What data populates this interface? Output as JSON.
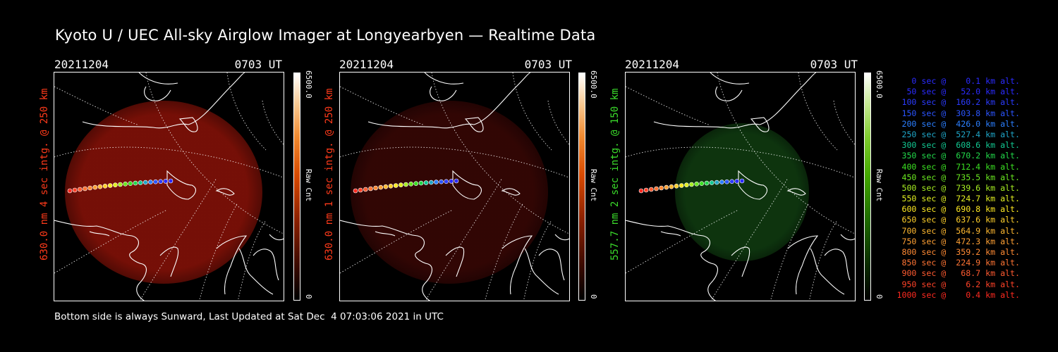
{
  "title": "Kyoto U / UEC All-sky Airglow Imager at Longyearbyen — Realtime Data",
  "panels": [
    {
      "date": "20211204",
      "time": "0703 UT",
      "ylabel": "630.0 nm 4 sec intg. @ 250 km",
      "ylabel_color": "#ff3a1a",
      "colorbar_max": "6500.0",
      "colorbar_min": "0",
      "colorbar_unit": "Raw Cnt",
      "image_color": "#8a1208",
      "image_alpha": 0.85
    },
    {
      "date": "20211204",
      "time": "0703 UT",
      "ylabel": "630.0 nm 1 sec intg. @ 250 km",
      "ylabel_color": "#ff3a1a",
      "colorbar_max": "6500.0",
      "colorbar_min": "0",
      "colorbar_unit": "Raw Cnt",
      "image_color": "#3a0705",
      "image_alpha": 0.85
    },
    {
      "date": "20211204",
      "time": "0703 UT",
      "ylabel": "557.7 nm 2 sec intg. @ 150 km",
      "ylabel_color": "#3bdc2b",
      "colorbar_max": "6500.0",
      "colorbar_min": "0",
      "colorbar_unit": "Raw Cnt",
      "image_color": "#0f3a10",
      "image_alpha": 0.9
    }
  ],
  "legend": [
    {
      "text": "   0 sec @    0.1 km alt.",
      "color": "#2b2bff"
    },
    {
      "text": "  50 sec @   52.0 km alt.",
      "color": "#2b2bff"
    },
    {
      "text": " 100 sec @  160.2 km alt.",
      "color": "#2b3bff"
    },
    {
      "text": " 150 sec @  303.8 km alt.",
      "color": "#2b55ff"
    },
    {
      "text": " 200 sec @  426.0 km alt.",
      "color": "#2b7fff"
    },
    {
      "text": " 250 sec @  527.4 km alt.",
      "color": "#1fa6c8"
    },
    {
      "text": " 300 sec @  608.6 km alt.",
      "color": "#12c892"
    },
    {
      "text": " 350 sec @  670.2 km alt.",
      "color": "#22d84a"
    },
    {
      "text": " 400 sec @  712.4 km alt.",
      "color": "#3be022"
    },
    {
      "text": " 450 sec @  735.5 km alt.",
      "color": "#6ae820"
    },
    {
      "text": " 500 sec @  739.6 km alt.",
      "color": "#a6ee22"
    },
    {
      "text": " 550 sec @  724.7 km alt.",
      "color": "#e2f022"
    },
    {
      "text": " 600 sec @  690.8 km alt.",
      "color": "#ffea22"
    },
    {
      "text": " 650 sec @  637.6 km alt.",
      "color": "#ffd02a"
    },
    {
      "text": " 700 sec @  564.9 km alt.",
      "color": "#ffb830"
    },
    {
      "text": " 750 sec @  472.3 km alt.",
      "color": "#ffa034"
    },
    {
      "text": " 800 sec @  359.2 km alt.",
      "color": "#ff8a34"
    },
    {
      "text": " 850 sec @  224.9 km alt.",
      "color": "#ff7434"
    },
    {
      "text": " 900 sec @   68.7 km alt.",
      "color": "#ff5a30"
    },
    {
      "text": " 950 sec @    6.2 km alt.",
      "color": "#ff4228"
    },
    {
      "text": "1000 sec @    0.4 km alt.",
      "color": "#ff2a20"
    }
  ],
  "footer": "Bottom side is always Sunward, Last Updated at Sat Dec  4 07:03:06 2021 in UTC"
}
